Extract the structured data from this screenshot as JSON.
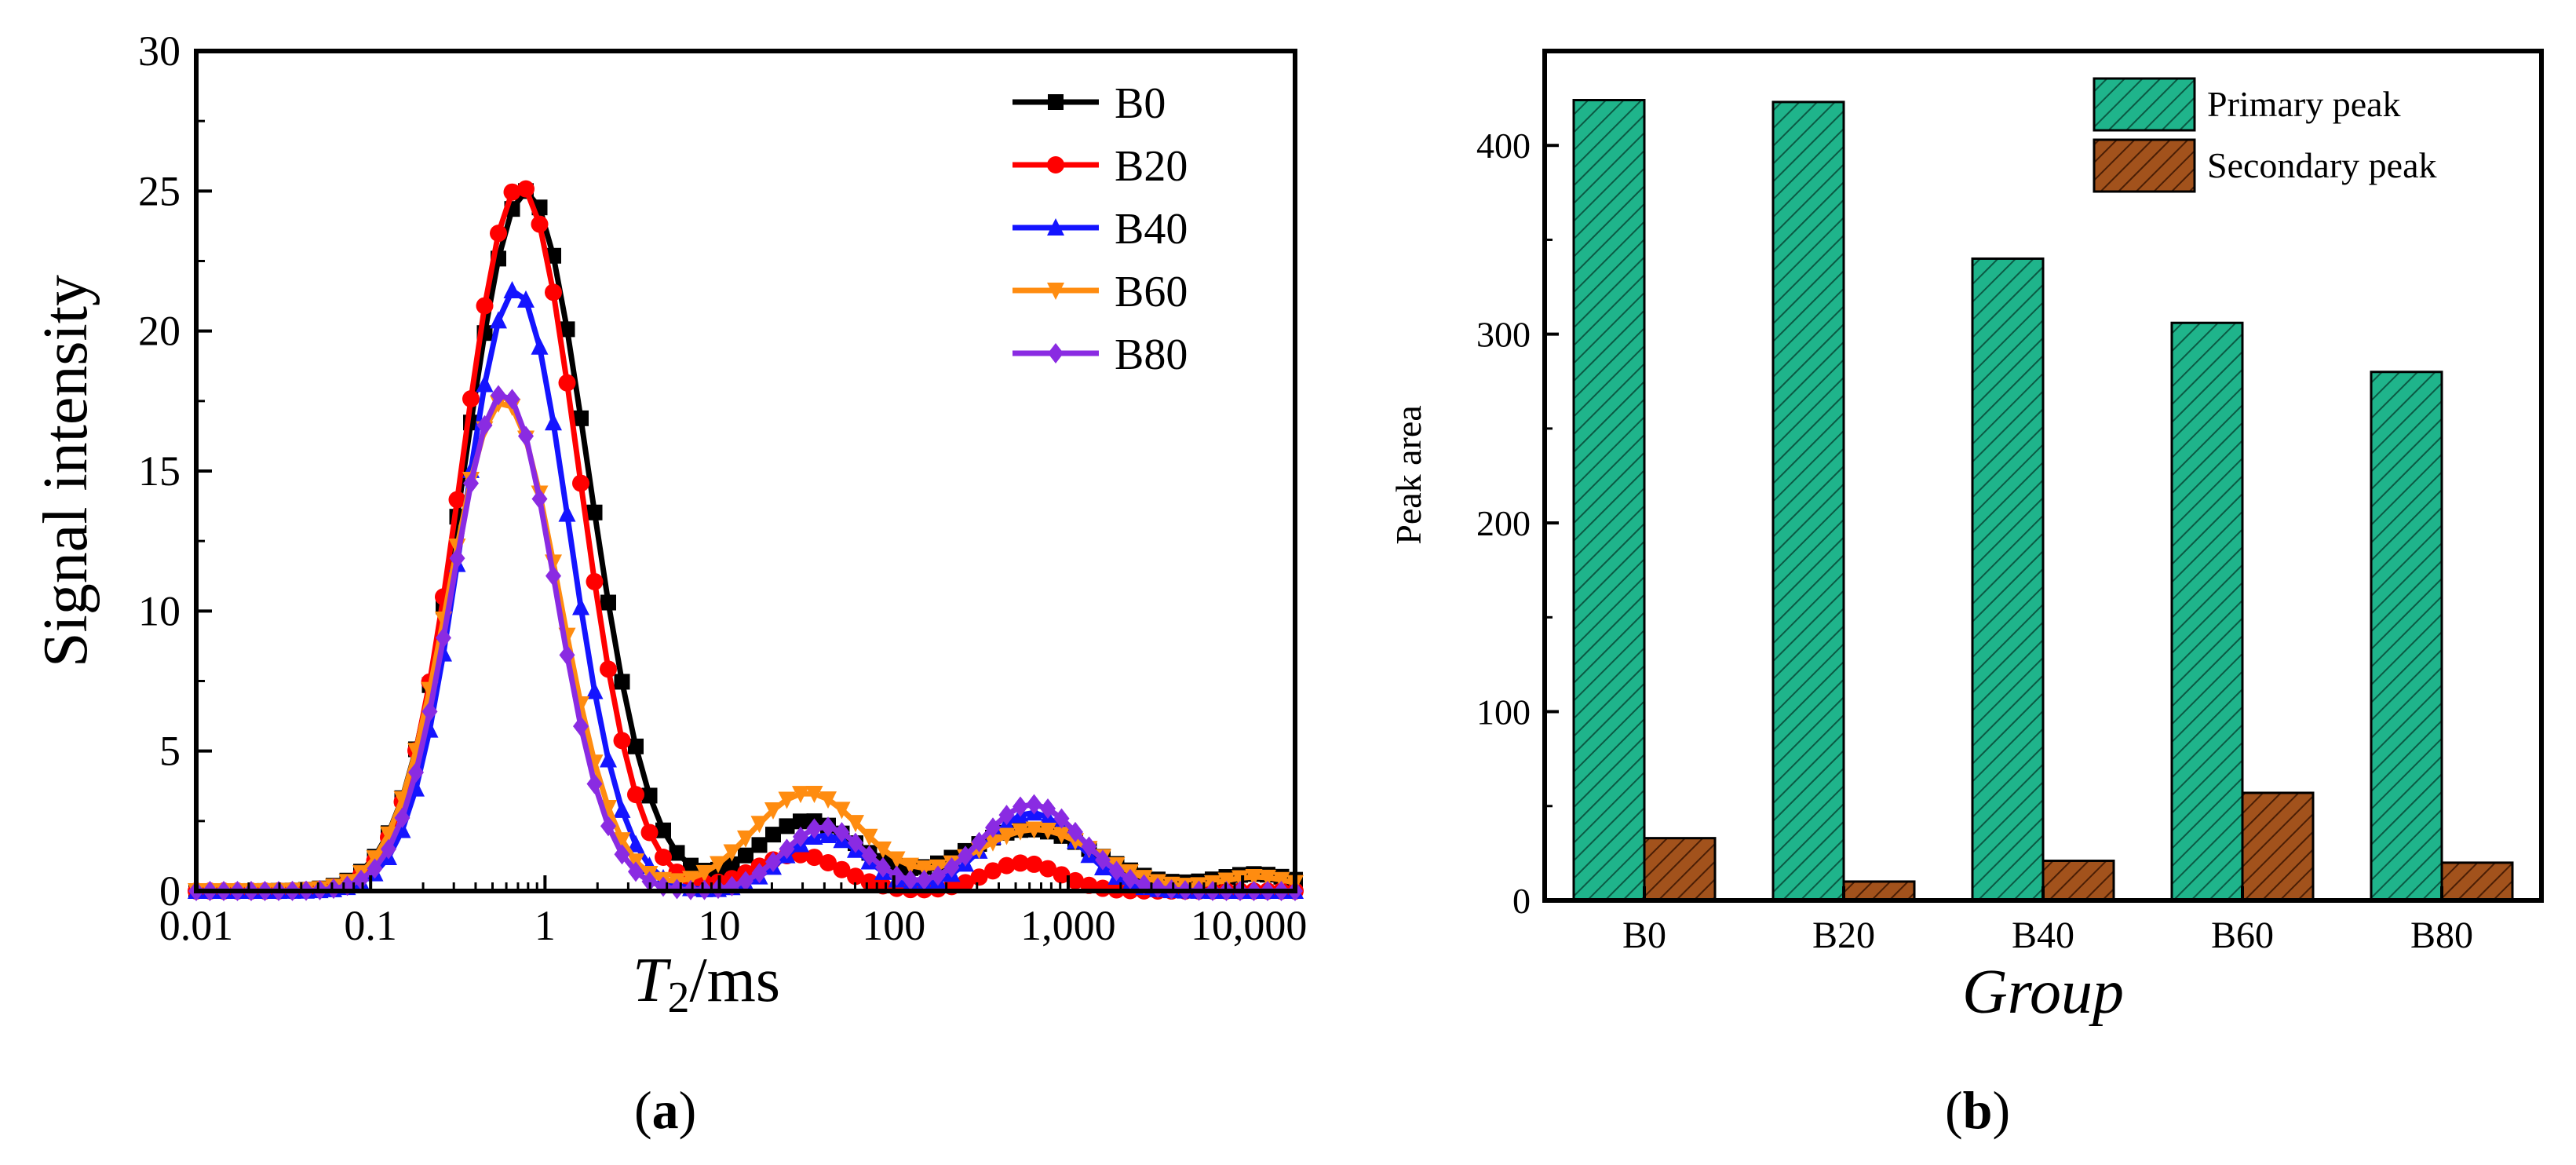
{
  "colors": {
    "B0": "#000000",
    "B20": "#ff0000",
    "B40": "#1414ff",
    "B60": "#ff8c10",
    "B80": "#8a2be2",
    "primary": "#1fb48b",
    "primary_hatch": "#0b5a44",
    "secondary": "#a2521c",
    "secondary_hatch": "#4a1e05"
  },
  "captions": {
    "a": "a",
    "b": "b"
  },
  "chart_data": [
    {
      "id": "a",
      "type": "line",
      "x_scale": "log",
      "xlabel_main": "T",
      "xlabel_sub": "2",
      "xlabel_unit": "/ms",
      "ylabel": "Signal intensity",
      "xlim": [
        0.01,
        20000
      ],
      "ylim": [
        0,
        30
      ],
      "xticks": [
        0.01,
        0.1,
        1,
        10,
        100,
        1000,
        10000
      ],
      "xtick_labels": [
        "0.01",
        "0.1",
        "1",
        "10",
        "100",
        "1,000",
        "10,000"
      ],
      "yticks": [
        0,
        5,
        10,
        15,
        20,
        25,
        30
      ],
      "ytick_labels": [
        "0",
        "5",
        "10",
        "15",
        "20",
        "25",
        "30"
      ],
      "legend_position": "top-right",
      "series": [
        {
          "name": "B0",
          "marker": "square",
          "peaks": [
            {
              "center": 0.78,
              "amp": 25.0,
              "width": 0.5
            },
            {
              "center": 32,
              "amp": 2.5,
              "width": 0.42
            },
            {
              "center": 600,
              "amp": 2.2,
              "width": 0.55
            },
            {
              "center": 12000,
              "amp": 0.6,
              "width": 0.35
            }
          ]
        },
        {
          "name": "B20",
          "marker": "circle",
          "peaks": [
            {
              "center": 0.72,
              "amp": 25.2,
              "width": 0.47
            },
            {
              "center": 28,
              "amp": 1.3,
              "width": 0.35
            },
            {
              "center": 550,
              "amp": 1.0,
              "width": 0.3
            }
          ]
        },
        {
          "name": "B40",
          "marker": "triangle-up",
          "peaks": [
            {
              "center": 0.68,
              "amp": 21.5,
              "width": 0.43
            },
            {
              "center": 40,
              "amp": 2.0,
              "width": 0.32
            },
            {
              "center": 620,
              "amp": 2.8,
              "width": 0.37
            }
          ]
        },
        {
          "name": "B60",
          "marker": "triangle-down",
          "peaks": [
            {
              "center": 0.58,
              "amp": 17.5,
              "width": 0.45
            },
            {
              "center": 32,
              "amp": 3.5,
              "width": 0.45
            },
            {
              "center": 650,
              "amp": 2.2,
              "width": 0.5
            },
            {
              "center": 12000,
              "amp": 0.5,
              "width": 0.3
            }
          ]
        },
        {
          "name": "B80",
          "marker": "diamond",
          "peaks": [
            {
              "center": 0.58,
              "amp": 17.8,
              "width": 0.42
            },
            {
              "center": 40,
              "amp": 2.3,
              "width": 0.33
            },
            {
              "center": 620,
              "amp": 3.1,
              "width": 0.4
            }
          ]
        }
      ]
    },
    {
      "id": "b",
      "type": "bar",
      "xlabel": "Group",
      "ylabel": "Peak area",
      "ylim": [
        0,
        450
      ],
      "yticks": [
        0,
        100,
        200,
        300,
        400
      ],
      "ytick_labels": [
        "0",
        "100",
        "200",
        "300",
        "400"
      ],
      "categories": [
        "B0",
        "B20",
        "B40",
        "B60",
        "B80"
      ],
      "legend_position": "top-right",
      "series": [
        {
          "name": "Primary peak",
          "values": [
            424,
            423,
            340,
            306,
            280
          ]
        },
        {
          "name": "Secondary peak",
          "values": [
            33,
            10,
            21,
            57,
            20
          ]
        }
      ]
    }
  ]
}
